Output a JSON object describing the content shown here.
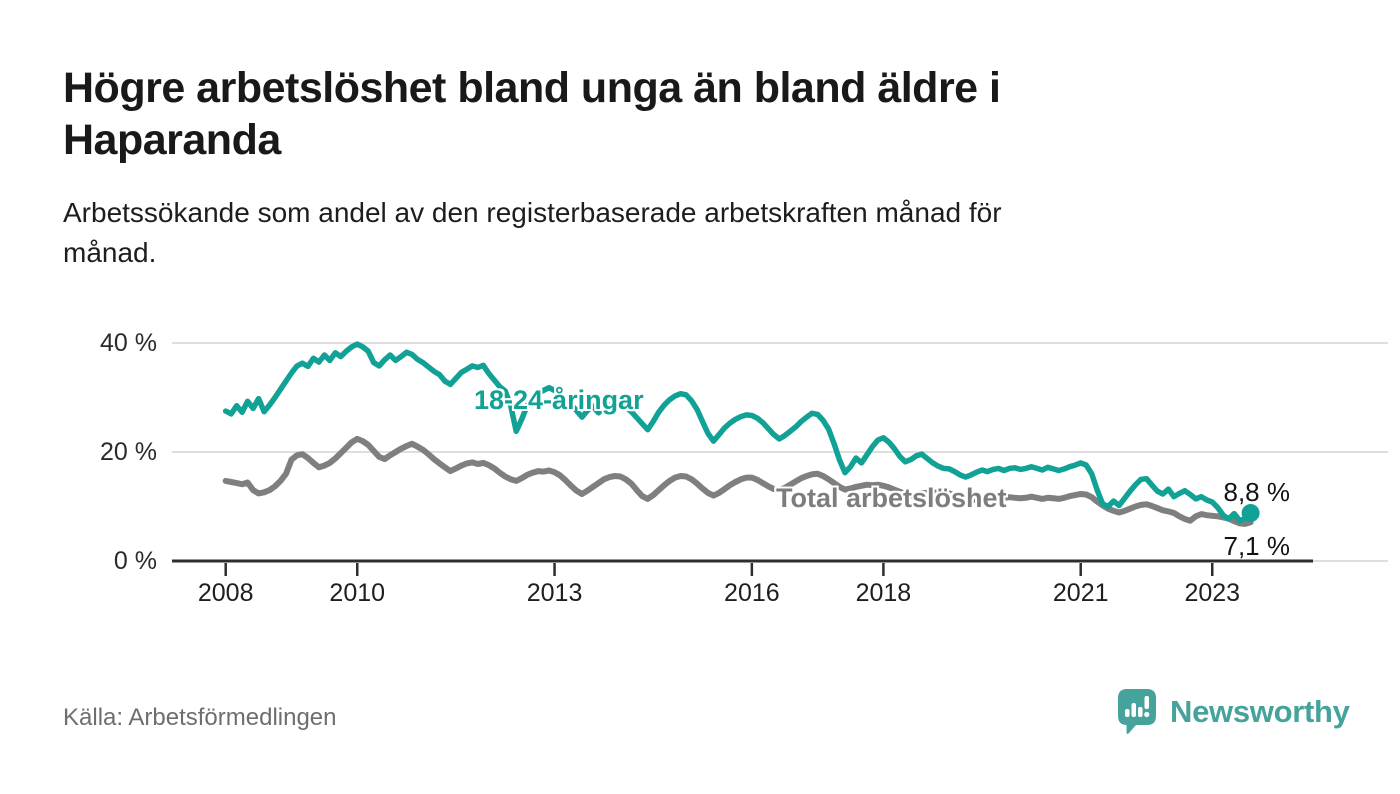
{
  "header": {
    "title_lines": [
      "Högre arbetslöshet bland unga än bland äldre i",
      "Haparanda"
    ],
    "subtitle_lines": [
      "Arbetssökande som andel av den registerbaserade arbetskraften månad för",
      "månad."
    ]
  },
  "chart_data": {
    "type": "line",
    "title": "Högre arbetslöshet bland unga än bland äldre i Haparanda",
    "subtitle": "Arbetssökande som andel av den registerbaserade arbetskraften månad för månad.",
    "unit": "%",
    "x_start": "2008-01",
    "x_end": "2023-08",
    "x_frequency": "monthly",
    "x_ticks": [
      "2008",
      "2010",
      "2013",
      "2016",
      "2018",
      "2021",
      "2023"
    ],
    "y_ticks": [
      "40 %",
      "20 %",
      "0 %"
    ],
    "y_tick_values": [
      40,
      20,
      0
    ],
    "ylim": [
      0,
      42
    ],
    "grid": true,
    "legend": "inline-labels",
    "series": [
      {
        "name": "18-24-åringar",
        "color": "#12a295",
        "end_label": "8,8 %",
        "end_value": 8.8,
        "end_dot": true,
        "values": [
          27.5,
          27.0,
          28.5,
          27.3,
          29.3,
          28.0,
          29.8,
          27.4,
          28.6,
          30.0,
          31.5,
          33.0,
          34.5,
          35.8,
          36.3,
          35.7,
          37.2,
          36.5,
          37.8,
          36.8,
          38.2,
          37.5,
          38.5,
          39.3,
          39.8,
          39.3,
          38.5,
          36.4,
          35.8,
          36.9,
          37.8,
          36.8,
          37.5,
          38.3,
          37.9,
          37.0,
          36.4,
          35.6,
          34.8,
          34.2,
          33.0,
          32.4,
          33.5,
          34.6,
          35.2,
          35.8,
          35.5,
          35.9,
          34.4,
          33.2,
          32.0,
          31.2,
          28.5,
          23.8,
          26.0,
          28.5,
          30.0,
          30.8,
          31.3,
          31.8,
          31.3,
          30.6,
          29.8,
          28.7,
          27.6,
          26.4,
          27.6,
          28.4,
          27.2,
          28.0,
          28.6,
          28.2,
          28.8,
          28.2,
          27.4,
          26.3,
          25.2,
          24.1,
          25.6,
          27.3,
          28.6,
          29.6,
          30.3,
          30.7,
          30.5,
          29.4,
          27.8,
          25.6,
          23.4,
          22.0,
          23.2,
          24.4,
          25.3,
          26.0,
          26.5,
          26.8,
          26.7,
          26.2,
          25.4,
          24.3,
          23.2,
          22.4,
          23.0,
          23.8,
          24.6,
          25.6,
          26.4,
          27.1,
          26.9,
          25.8,
          24.2,
          21.5,
          18.5,
          16.2,
          17.3,
          18.9,
          18.0,
          19.5,
          21.0,
          22.2,
          22.6,
          21.8,
          20.6,
          19.2,
          18.2,
          18.6,
          19.3,
          19.6,
          18.8,
          18.0,
          17.4,
          17.0,
          16.9,
          16.4,
          15.8,
          15.4,
          15.8,
          16.3,
          16.7,
          16.4,
          16.8,
          17.0,
          16.6,
          17.0,
          17.1,
          16.8,
          17.0,
          17.3,
          17.0,
          16.7,
          17.2,
          16.9,
          16.6,
          16.9,
          17.3,
          17.6,
          18.0,
          17.6,
          16.0,
          13.0,
          10.5,
          10.0,
          11.0,
          10.2,
          11.5,
          12.8,
          14.0,
          15.0,
          15.1,
          13.9,
          12.8,
          12.3,
          13.2,
          11.8,
          12.4,
          12.9,
          12.2,
          11.4,
          11.8,
          11.2,
          10.8,
          9.8,
          8.4,
          7.7,
          8.7,
          7.4,
          7.8,
          8.8
        ]
      },
      {
        "name": "Total arbetslöshet",
        "color": "#7f7f7f",
        "end_label": "7,1 %",
        "end_value": 7.1,
        "end_dot": false,
        "values": [
          14.7,
          14.5,
          14.3,
          14.1,
          14.4,
          13.0,
          12.4,
          12.6,
          13.0,
          13.7,
          14.7,
          16.0,
          18.6,
          19.4,
          19.6,
          18.9,
          18.0,
          17.2,
          17.5,
          18.0,
          18.8,
          19.8,
          20.8,
          21.8,
          22.4,
          22.0,
          21.3,
          20.2,
          19.1,
          18.7,
          19.4,
          20.0,
          20.6,
          21.1,
          21.5,
          21.0,
          20.4,
          19.6,
          18.7,
          17.9,
          17.2,
          16.5,
          17.0,
          17.5,
          17.9,
          18.1,
          17.8,
          18.0,
          17.6,
          17.0,
          16.2,
          15.5,
          15.0,
          14.7,
          15.2,
          15.8,
          16.2,
          16.5,
          16.4,
          16.6,
          16.3,
          15.7,
          14.8,
          13.8,
          12.9,
          12.3,
          12.9,
          13.6,
          14.3,
          15.0,
          15.4,
          15.6,
          15.5,
          15.0,
          14.2,
          13.0,
          11.9,
          11.4,
          12.1,
          13.0,
          13.9,
          14.7,
          15.3,
          15.6,
          15.5,
          15.0,
          14.2,
          13.3,
          12.5,
          12.0,
          12.5,
          13.2,
          13.9,
          14.5,
          15.0,
          15.3,
          15.3,
          14.9,
          14.3,
          13.7,
          13.2,
          13.0,
          13.4,
          14.0,
          14.6,
          15.2,
          15.6,
          15.9,
          16.0,
          15.6,
          15.0,
          14.3,
          13.6,
          13.1,
          13.3,
          13.6,
          13.8,
          14.0,
          13.9,
          14.0,
          13.8,
          13.5,
          13.1,
          12.7,
          12.3,
          12.0,
          12.2,
          12.4,
          12.5,
          12.6,
          12.5,
          12.6,
          12.4,
          12.1,
          11.8,
          11.5,
          11.3,
          11.2,
          11.4,
          11.5,
          11.6,
          11.7,
          11.6,
          11.7,
          11.6,
          11.5,
          11.6,
          11.8,
          11.6,
          11.4,
          11.6,
          11.5,
          11.4,
          11.6,
          11.9,
          12.1,
          12.3,
          12.2,
          11.7,
          10.9,
          10.2,
          9.6,
          9.2,
          8.9,
          9.2,
          9.6,
          10.0,
          10.3,
          10.4,
          10.1,
          9.7,
          9.3,
          9.1,
          8.8,
          8.2,
          7.7,
          7.4,
          8.2,
          8.6,
          8.4,
          8.3,
          8.2,
          8.0,
          7.8,
          7.3,
          6.9,
          6.8,
          7.1
        ]
      }
    ]
  },
  "colors": {
    "accent_teal": "#12a295",
    "line_gray": "#7f7f7f",
    "grid": "#dedede",
    "axis": "#2e2e2e",
    "text_dark": "#191918",
    "text_gray": "#6e6e6e",
    "brand_teal": "#45a39b"
  },
  "footer": {
    "source": "Källa: Arbetsförmedlingen",
    "brand": "Newsworthy"
  }
}
